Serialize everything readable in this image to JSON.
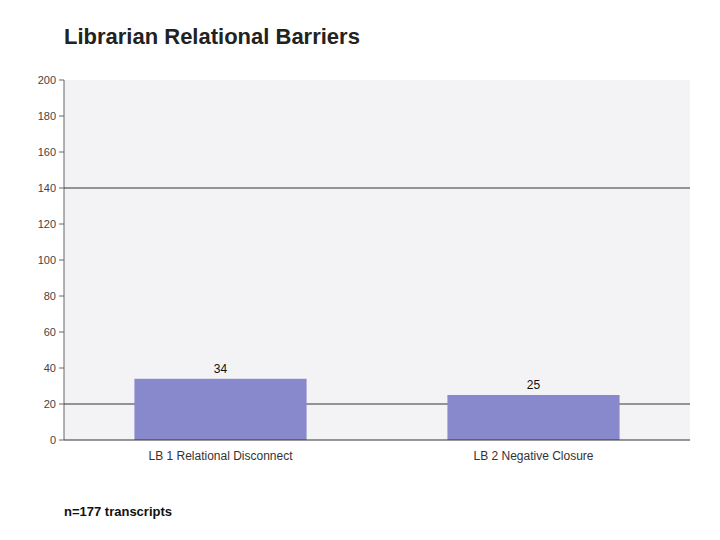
{
  "chart_data": {
    "type": "bar",
    "title": "Librarian Relational Barriers",
    "categories": [
      "LB 1 Relational Disconnect",
      "LB 2 Negative Closure"
    ],
    "values": [
      34,
      25
    ],
    "color": "#8888CC",
    "ylim": [
      0,
      200
    ],
    "yticks": [
      0,
      20,
      40,
      60,
      80,
      100,
      120,
      140,
      160,
      180,
      200
    ],
    "hlines": [
      20,
      140
    ],
    "data_labels": true,
    "footer": "n=177 transcripts"
  }
}
